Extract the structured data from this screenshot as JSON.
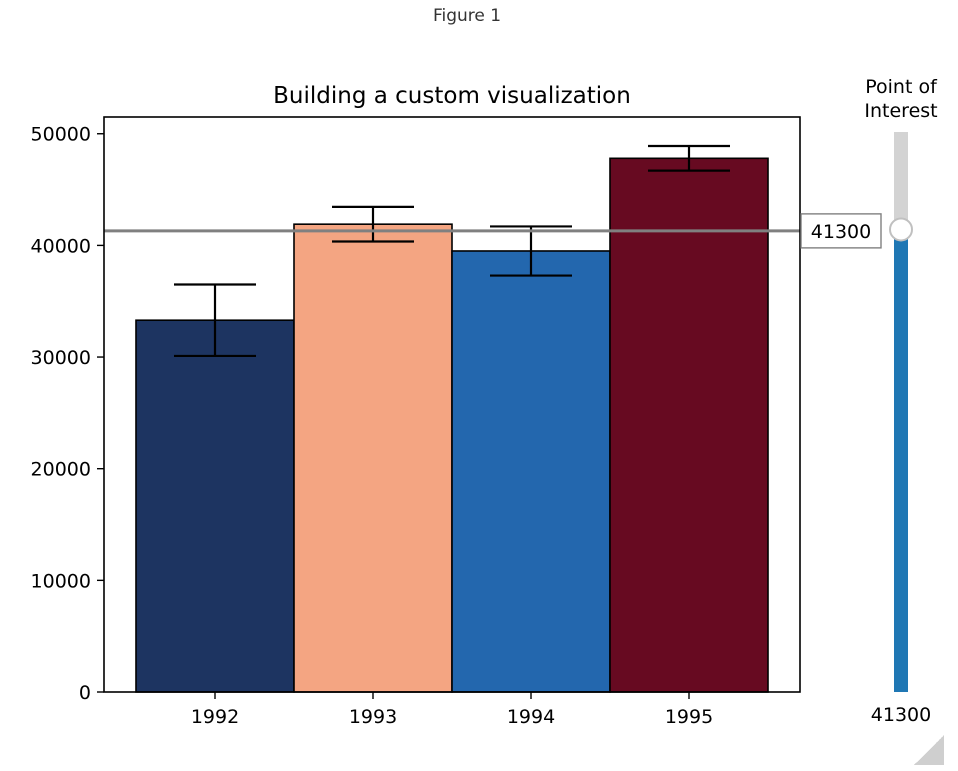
{
  "window": {
    "figure_title": "Figure 1"
  },
  "colors": {
    "axis": "#000000",
    "poi_line": "#808080",
    "slider_track": "#d3d3d3",
    "slider_fill": "#1f77b4",
    "slider_handle_fill": "#ffffff",
    "slider_handle_edge": "#c0c0c0"
  },
  "chart_data": {
    "type": "bar",
    "title": "Building a custom visualization",
    "categories": [
      "1992",
      "1993",
      "1994",
      "1995"
    ],
    "values": [
      33300,
      41900,
      39500,
      47800
    ],
    "errors": [
      3200,
      1550,
      2200,
      1100
    ],
    "bar_colors": [
      "#1d3461",
      "#f4a582",
      "#2367ae",
      "#670a21"
    ],
    "xlabel": "",
    "ylabel": "",
    "ylim": [
      0,
      51500
    ],
    "yticks": [
      0,
      10000,
      20000,
      30000,
      40000,
      50000
    ],
    "ytick_labels": [
      "0",
      "10000",
      "20000",
      "30000",
      "40000",
      "50000"
    ],
    "point_of_interest": 41300,
    "poi_label": "41300",
    "grid": false
  },
  "slider": {
    "title_line1": "Point of",
    "title_line2": "Interest",
    "value_label": "41300",
    "value": 41300,
    "min": 0,
    "max": 50000
  }
}
